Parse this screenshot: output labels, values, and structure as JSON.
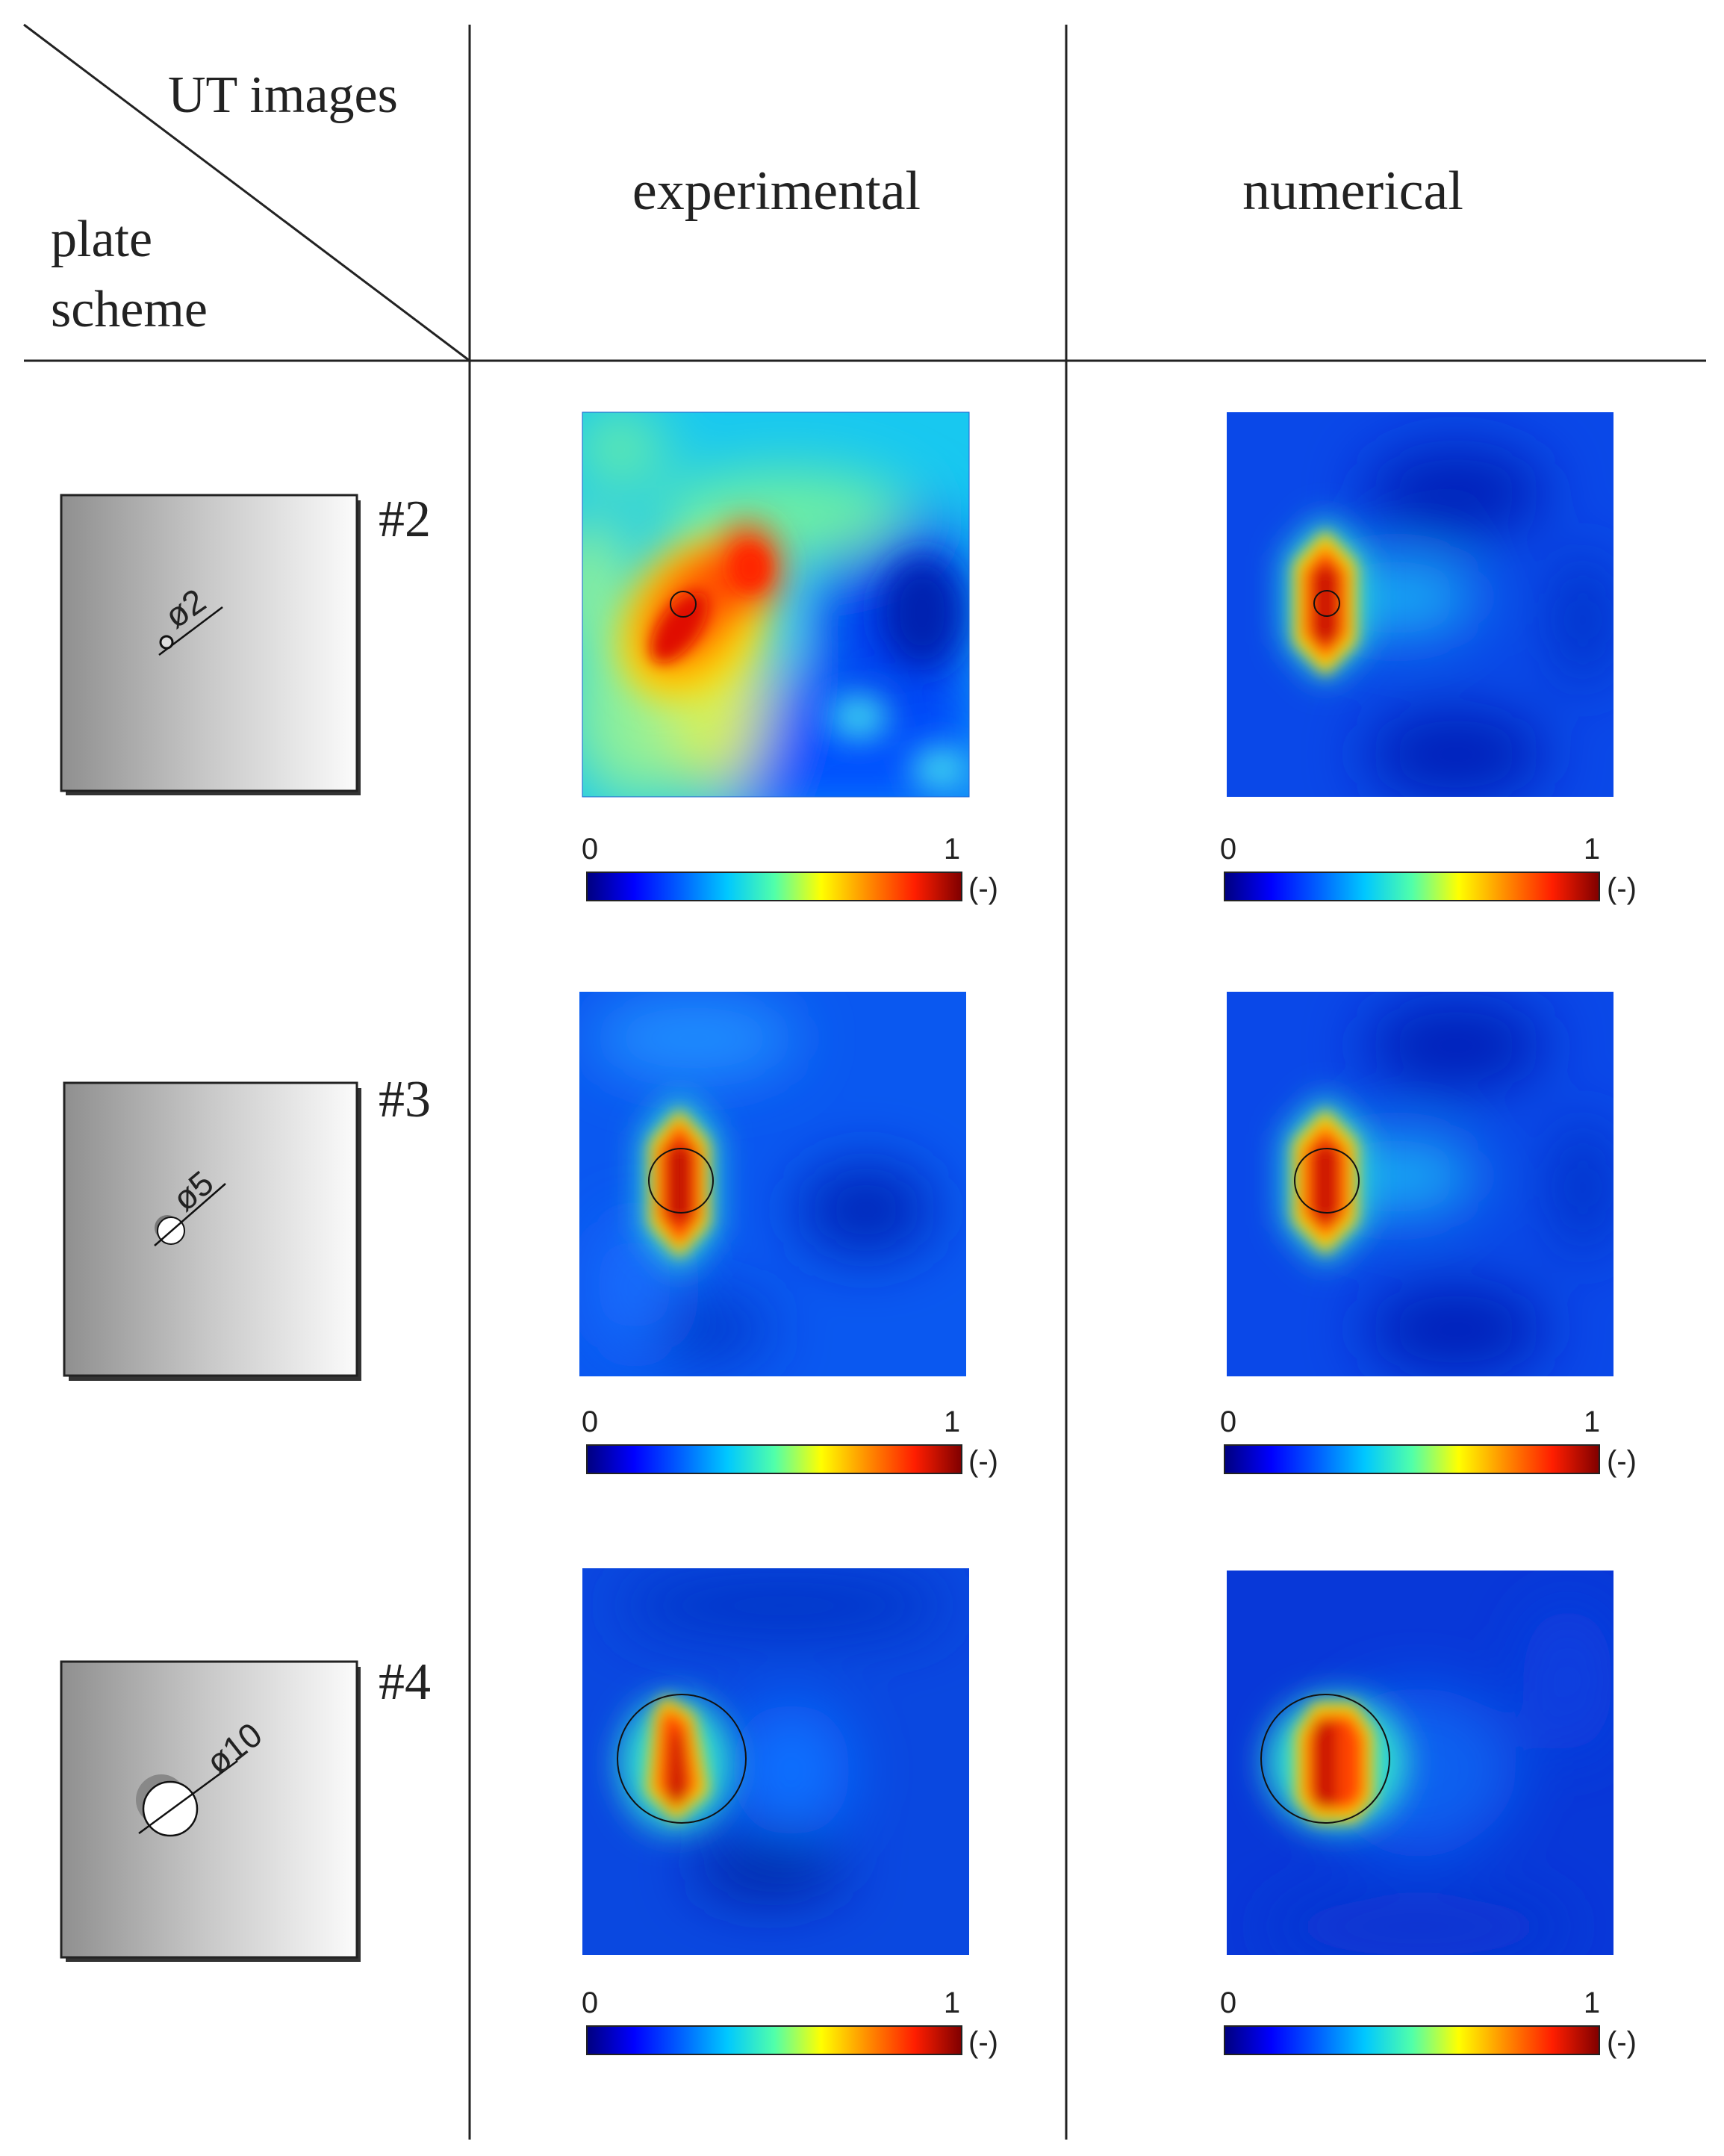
{
  "header": {
    "corner_top": "UT images",
    "corner_bottom_line1": "plate",
    "corner_bottom_line2": "scheme",
    "col_experimental": "experimental",
    "col_numerical": "numerical"
  },
  "colormap": {
    "name": "jet",
    "stops": [
      "#00007f",
      "#0000ff",
      "#007fff",
      "#00ffff",
      "#7fff7f",
      "#ffff00",
      "#ff7f00",
      "#ff0000",
      "#7f0000"
    ],
    "min_label": "0",
    "max_label": "1",
    "unit_label": "(-)"
  },
  "rows": [
    {
      "id": "#2",
      "diameter_label": "ø2",
      "hole_diameter": 2,
      "experimental": {
        "peak": 1.0,
        "background_level": "high"
      },
      "numerical": {
        "peak": 1.0,
        "background_level": "low"
      }
    },
    {
      "id": "#3",
      "diameter_label": "ø5",
      "hole_diameter": 5,
      "experimental": {
        "peak": 1.0,
        "background_level": "low"
      },
      "numerical": {
        "peak": 1.0,
        "background_level": "low"
      }
    },
    {
      "id": "#4",
      "diameter_label": "ø10",
      "hole_diameter": 10,
      "experimental": {
        "peak": 1.0,
        "background_level": "low"
      },
      "numerical": {
        "peak": 1.0,
        "background_level": "low"
      }
    }
  ]
}
